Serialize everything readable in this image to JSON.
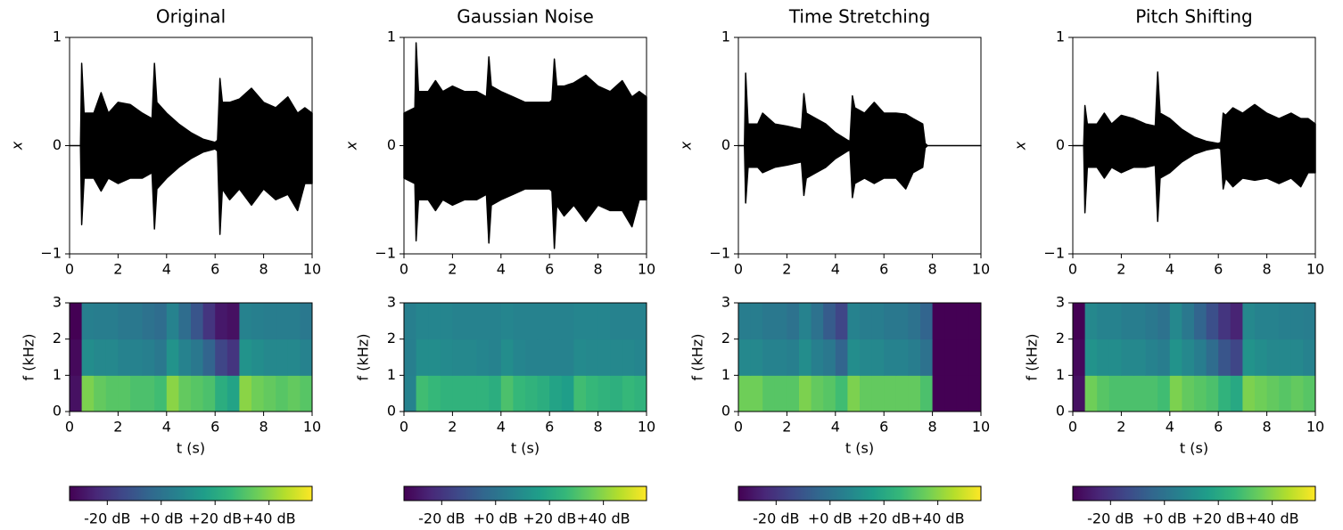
{
  "chart_data": [
    {
      "type": "area",
      "title": "Original",
      "ylabel": "x",
      "color": "#000000",
      "x": [
        0,
        0.45,
        0.5,
        0.6,
        1.0,
        1.3,
        1.6,
        2.0,
        2.5,
        3.0,
        3.4,
        3.5,
        3.6,
        4.0,
        4.5,
        5.0,
        5.5,
        6.0,
        6.1,
        6.2,
        6.3,
        6.6,
        7.0,
        7.5,
        8.0,
        8.5,
        9.0,
        9.4,
        9.7,
        10
      ],
      "upper": [
        0,
        0,
        0.76,
        0.3,
        0.3,
        0.49,
        0.3,
        0.4,
        0.38,
        0.3,
        0.25,
        0.76,
        0.4,
        0.3,
        0.2,
        0.12,
        0.06,
        0.03,
        0.05,
        0.62,
        0.4,
        0.4,
        0.43,
        0.53,
        0.4,
        0.35,
        0.45,
        0.3,
        0.35,
        0.3
      ],
      "lower": [
        0,
        0,
        -0.73,
        -0.3,
        -0.3,
        -0.42,
        -0.3,
        -0.35,
        -0.3,
        -0.3,
        -0.25,
        -0.77,
        -0.4,
        -0.3,
        -0.2,
        -0.12,
        -0.06,
        -0.03,
        -0.05,
        -0.82,
        -0.4,
        -0.5,
        -0.4,
        -0.55,
        -0.4,
        -0.5,
        -0.45,
        -0.6,
        -0.35,
        -0.35
      ],
      "xlim": [
        0,
        10
      ],
      "xticks": [
        0,
        2,
        4,
        6,
        8,
        10
      ],
      "ylim": [
        -1,
        1
      ],
      "yticks": [
        {
          "value": -1,
          "label": "−1"
        },
        0,
        1
      ]
    },
    {
      "type": "heatmap",
      "xlabel": "t (s)",
      "ylabel": "f (kHz)",
      "colormap": "viridis",
      "xlim": [
        0,
        10
      ],
      "xticks": [
        0,
        2,
        4,
        6,
        8,
        10
      ],
      "ylim": [
        0,
        3
      ],
      "yticks": [
        0,
        1,
        2,
        3
      ],
      "values": [
        [
          -30,
          38,
          34,
          32,
          32,
          30,
          30,
          28,
          40,
          34,
          32,
          30,
          22,
          18,
          40,
          36,
          34,
          32,
          34,
          32
        ],
        [
          -32,
          10,
          8,
          8,
          6,
          6,
          5,
          2,
          12,
          6,
          2,
          -5,
          -15,
          -20,
          12,
          10,
          8,
          8,
          8,
          6
        ],
        [
          -34,
          5,
          4,
          4,
          2,
          2,
          0,
          -2,
          6,
          -2,
          -10,
          -20,
          -28,
          -30,
          6,
          5,
          4,
          4,
          4,
          2
        ]
      ],
      "clim": [
        -34,
        56
      ],
      "cticks": [
        {
          "value": -20,
          "label": "-20 dB"
        },
        {
          "value": 0,
          "label": "+0 dB"
        },
        {
          "value": 20,
          "label": "+20 dB"
        },
        {
          "value": 40,
          "label": "+40 dB"
        }
      ]
    },
    {
      "type": "area",
      "title": "Gaussian Noise",
      "ylabel": "x",
      "color": "#000000",
      "x": [
        0,
        0.45,
        0.5,
        0.6,
        1.0,
        1.3,
        1.6,
        2.0,
        2.5,
        3.0,
        3.4,
        3.5,
        3.6,
        4.0,
        4.5,
        5.0,
        5.5,
        6.0,
        6.1,
        6.2,
        6.3,
        6.6,
        7.0,
        7.5,
        8.0,
        8.5,
        9.0,
        9.4,
        9.7,
        10
      ],
      "upper": [
        0.3,
        0.35,
        0.95,
        0.5,
        0.5,
        0.6,
        0.5,
        0.55,
        0.5,
        0.5,
        0.45,
        0.82,
        0.55,
        0.5,
        0.45,
        0.4,
        0.4,
        0.4,
        0.42,
        0.8,
        0.55,
        0.55,
        0.58,
        0.65,
        0.55,
        0.5,
        0.6,
        0.45,
        0.5,
        0.45
      ],
      "lower": [
        -0.3,
        -0.35,
        -0.88,
        -0.5,
        -0.5,
        -0.6,
        -0.5,
        -0.55,
        -0.5,
        -0.5,
        -0.45,
        -0.9,
        -0.55,
        -0.5,
        -0.45,
        -0.4,
        -0.4,
        -0.4,
        -0.42,
        -0.95,
        -0.55,
        -0.65,
        -0.55,
        -0.7,
        -0.55,
        -0.6,
        -0.6,
        -0.75,
        -0.5,
        -0.5
      ],
      "xlim": [
        0,
        10
      ],
      "xticks": [
        0,
        2,
        4,
        6,
        8,
        10
      ],
      "ylim": [
        -1,
        1
      ],
      "yticks": [
        {
          "value": -1,
          "label": "−1"
        },
        0,
        1
      ]
    },
    {
      "type": "heatmap",
      "xlabel": "t (s)",
      "ylabel": "f (kHz)",
      "colormap": "viridis",
      "xlim": [
        0,
        10
      ],
      "xticks": [
        0,
        2,
        4,
        6,
        8,
        10
      ],
      "ylim": [
        0,
        3
      ],
      "yticks": [
        0,
        1,
        2,
        3
      ],
      "values": [
        [
          6,
          28,
          26,
          24,
          24,
          24,
          24,
          22,
          30,
          26,
          24,
          22,
          18,
          16,
          28,
          26,
          24,
          23,
          26,
          24
        ],
        [
          5,
          10,
          10,
          9,
          8,
          8,
          7,
          6,
          10,
          7,
          6,
          6,
          6,
          6,
          9,
          8,
          8,
          8,
          8,
          7
        ],
        [
          5,
          7,
          7,
          7,
          6,
          6,
          6,
          6,
          7,
          6,
          6,
          6,
          6,
          6,
          7,
          7,
          7,
          6,
          6,
          6
        ]
      ],
      "clim": [
        -34,
        56
      ],
      "cticks": [
        {
          "value": -20,
          "label": "-20 dB"
        },
        {
          "value": 0,
          "label": "+0 dB"
        },
        {
          "value": 20,
          "label": "+20 dB"
        },
        {
          "value": 40,
          "label": "+40 dB"
        }
      ]
    },
    {
      "type": "area",
      "title": "Time Stretching",
      "ylabel": "x",
      "color": "#000000",
      "x": [
        0,
        0.25,
        0.3,
        0.4,
        0.8,
        1.0,
        1.5,
        2.0,
        2.6,
        2.7,
        2.8,
        3.2,
        3.6,
        4.0,
        4.5,
        4.6,
        4.7,
        4.8,
        5.2,
        5.6,
        6.0,
        6.5,
        6.9,
        7.2,
        7.6,
        7.7,
        7.8,
        10
      ],
      "upper": [
        0,
        0,
        0.67,
        0.2,
        0.2,
        0.3,
        0.2,
        0.18,
        0.15,
        0.48,
        0.3,
        0.25,
        0.2,
        0.12,
        0.05,
        0.04,
        0.46,
        0.35,
        0.3,
        0.4,
        0.3,
        0.3,
        0.29,
        0.25,
        0.2,
        0.02,
        0,
        0
      ],
      "lower": [
        0,
        0,
        -0.53,
        -0.2,
        -0.2,
        -0.25,
        -0.2,
        -0.18,
        -0.15,
        -0.46,
        -0.3,
        -0.25,
        -0.2,
        -0.12,
        -0.05,
        -0.04,
        -0.48,
        -0.35,
        -0.3,
        -0.35,
        -0.3,
        -0.3,
        -0.4,
        -0.25,
        -0.2,
        -0.02,
        0,
        0
      ],
      "xlim": [
        0,
        10
      ],
      "xticks": [
        0,
        2,
        4,
        6,
        8,
        10
      ],
      "ylim": [
        -1,
        1
      ],
      "yticks": [
        {
          "value": -1,
          "label": "−1"
        },
        0,
        1
      ]
    },
    {
      "type": "heatmap",
      "xlabel": "t (s)",
      "ylabel": "f (kHz)",
      "colormap": "viridis",
      "xlim": [
        0,
        10
      ],
      "xticks": [
        0,
        2,
        4,
        6,
        8,
        10
      ],
      "ylim": [
        0,
        3
      ],
      "yticks": [
        0,
        1,
        2,
        3
      ],
      "values": [
        [
          36,
          36,
          32,
          32,
          32,
          38,
          34,
          32,
          28,
          38,
          34,
          34,
          34,
          34,
          34,
          30,
          -34,
          -34,
          -34,
          -34
        ],
        [
          8,
          8,
          6,
          6,
          5,
          10,
          5,
          2,
          -5,
          10,
          8,
          8,
          6,
          6,
          4,
          0,
          -34,
          -34,
          -34,
          -34
        ],
        [
          4,
          4,
          2,
          2,
          0,
          6,
          0,
          -8,
          -15,
          6,
          4,
          4,
          2,
          2,
          0,
          -5,
          -34,
          -34,
          -34,
          -34
        ]
      ],
      "clim": [
        -34,
        56
      ],
      "cticks": [
        {
          "value": -20,
          "label": "-20 dB"
        },
        {
          "value": 0,
          "label": "+0 dB"
        },
        {
          "value": 20,
          "label": "+20 dB"
        },
        {
          "value": 40,
          "label": "+40 dB"
        }
      ]
    },
    {
      "type": "area",
      "title": "Pitch Shifting",
      "ylabel": "x",
      "color": "#000000",
      "x": [
        0,
        0.45,
        0.5,
        0.6,
        1.0,
        1.3,
        1.6,
        2.0,
        2.5,
        3.0,
        3.4,
        3.5,
        3.6,
        4.0,
        4.5,
        5.0,
        5.5,
        6.0,
        6.1,
        6.2,
        6.3,
        6.6,
        7.0,
        7.5,
        8.0,
        8.5,
        9.0,
        9.4,
        9.7,
        10
      ],
      "upper": [
        0,
        0,
        0.37,
        0.2,
        0.2,
        0.3,
        0.2,
        0.28,
        0.25,
        0.2,
        0.18,
        0.68,
        0.3,
        0.25,
        0.15,
        0.08,
        0.04,
        0.02,
        0.03,
        0.3,
        0.28,
        0.35,
        0.3,
        0.38,
        0.3,
        0.25,
        0.3,
        0.25,
        0.25,
        0.2
      ],
      "lower": [
        0,
        0,
        -0.62,
        -0.2,
        -0.2,
        -0.3,
        -0.2,
        -0.25,
        -0.2,
        -0.2,
        -0.18,
        -0.7,
        -0.3,
        -0.25,
        -0.15,
        -0.08,
        -0.04,
        -0.02,
        -0.03,
        -0.4,
        -0.3,
        -0.38,
        -0.3,
        -0.32,
        -0.3,
        -0.35,
        -0.3,
        -0.38,
        -0.25,
        -0.25
      ],
      "xlim": [
        0,
        10
      ],
      "xticks": [
        0,
        2,
        4,
        6,
        8,
        10
      ],
      "ylim": [
        -1,
        1
      ],
      "yticks": [
        {
          "value": -1,
          "label": "−1"
        },
        0,
        1
      ]
    },
    {
      "type": "heatmap",
      "xlabel": "t (s)",
      "ylabel": "f (kHz)",
      "colormap": "viridis",
      "xlim": [
        0,
        10
      ],
      "xticks": [
        0,
        2,
        4,
        6,
        8,
        10
      ],
      "ylim": [
        0,
        3
      ],
      "yticks": [
        0,
        1,
        2,
        3
      ],
      "values": [
        [
          -30,
          36,
          32,
          30,
          30,
          30,
          30,
          28,
          38,
          34,
          32,
          30,
          24,
          20,
          38,
          36,
          34,
          32,
          34,
          32
        ],
        [
          -32,
          12,
          10,
          10,
          8,
          8,
          6,
          4,
          12,
          8,
          4,
          -2,
          -10,
          -15,
          12,
          10,
          8,
          8,
          8,
          6
        ],
        [
          -34,
          8,
          6,
          6,
          4,
          4,
          2,
          0,
          8,
          2,
          -5,
          -12,
          -20,
          -25,
          8,
          6,
          6,
          5,
          5,
          4
        ]
      ],
      "clim": [
        -34,
        56
      ],
      "cticks": [
        {
          "value": -20,
          "label": "-20 dB"
        },
        {
          "value": 0,
          "label": "+0 dB"
        },
        {
          "value": 20,
          "label": "+20 dB"
        },
        {
          "value": 40,
          "label": "+40 dB"
        }
      ]
    }
  ]
}
